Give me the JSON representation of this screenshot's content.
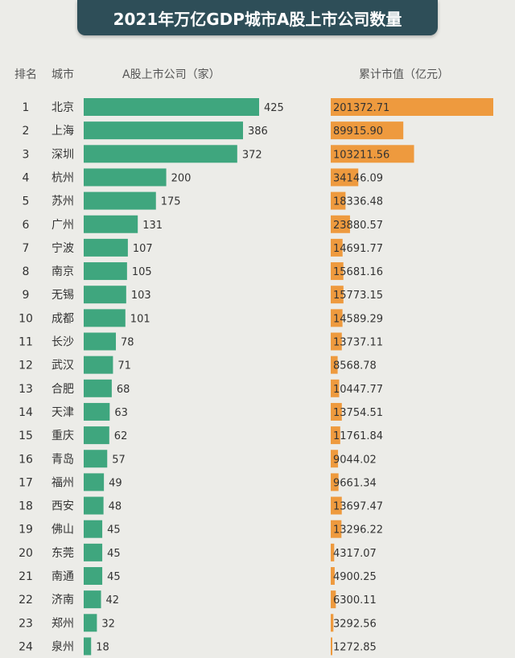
{
  "title": "2021年万亿GDP城市A股上市公司数量",
  "headers": {
    "rank": "排名",
    "city": "城市",
    "companies": "A股上市公司（家）",
    "market_value": "累计市值（亿元）"
  },
  "colors": {
    "bar_green": "#3fa67e",
    "bar_orange": "#ee9a3e",
    "title_bg": "#2e4e58"
  },
  "chart_data": {
    "type": "bar",
    "categories": [
      "北京",
      "上海",
      "深圳",
      "杭州",
      "苏州",
      "广州",
      "宁波",
      "南京",
      "无锡",
      "成都",
      "长沙",
      "武汉",
      "合肥",
      "天津",
      "重庆",
      "青岛",
      "福州",
      "西安",
      "佛山",
      "东莞",
      "南通",
      "济南",
      "郑州",
      "泉州"
    ],
    "ranks": [
      "1",
      "2",
      "3",
      "4",
      "5",
      "6",
      "7",
      "8",
      "9",
      "10",
      "11",
      "12",
      "13",
      "14",
      "15",
      "16",
      "17",
      "18",
      "19",
      "20",
      "21",
      "22",
      "23",
      "24"
    ],
    "series": [
      {
        "name": "A股上市公司（家）",
        "values": [
          425,
          386,
          372,
          200,
          175,
          131,
          107,
          105,
          103,
          101,
          78,
          71,
          68,
          63,
          62,
          57,
          49,
          48,
          45,
          45,
          45,
          42,
          32,
          18
        ],
        "labels": [
          "425",
          "386",
          "372",
          "200",
          "175",
          "131",
          "107",
          "105",
          "103",
          "101",
          "78",
          "71",
          "68",
          "63",
          "62",
          "57",
          "49",
          "48",
          "45",
          "45",
          "45",
          "42",
          "32",
          "18"
        ]
      },
      {
        "name": "累计市值（亿元）",
        "values": [
          201372.71,
          89915.9,
          103211.56,
          34146.09,
          18336.48,
          23880.57,
          14691.77,
          15681.16,
          15773.15,
          14589.29,
          13737.11,
          8568.78,
          10447.77,
          13754.51,
          11761.84,
          9044.02,
          9661.34,
          13697.47,
          13296.22,
          4317.07,
          4900.25,
          6300.11,
          3292.56,
          1272.85
        ],
        "labels": [
          "201372.71",
          "89915.90",
          "103211.56",
          "34146.09",
          "18336.48",
          "23880.57",
          "14691.77",
          "15681.16",
          "15773.15",
          "14589.29",
          "13737.11",
          "8568.78",
          "10447.77",
          "13754.51",
          "11761.84",
          "9044.02",
          "9661.34",
          "13697.47",
          "13296.22",
          "4317.07",
          "4900.25",
          "6300.11",
          "3292.56",
          "1272.85"
        ]
      }
    ]
  }
}
